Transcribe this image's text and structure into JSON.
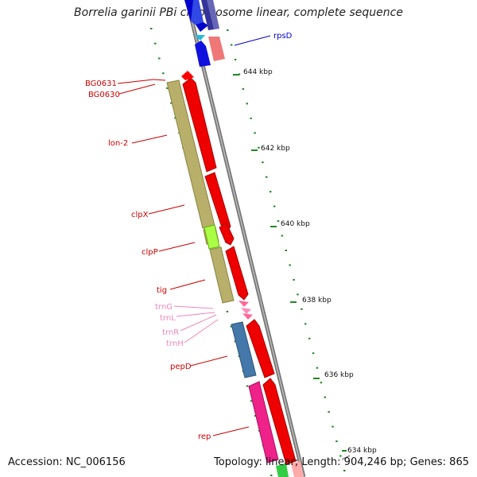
{
  "title": "Borrelia garinii PBi chromosome linear, complete sequence",
  "footer": {
    "accession": "Accession: NC_006156",
    "topology": "Topology: linear; Length: 904,246 bp; Genes: 865"
  },
  "colors": {
    "forward_gene": "#ff0000",
    "reverse_gene": "#b8b06a",
    "rRNA": "#ff6699",
    "trna_text": "#ee88bb",
    "cds_blue": "#4477aa",
    "cds_magenta": "#ee2288",
    "tick_green": "#228822",
    "backbone": "#888888"
  },
  "ruler_labels": [
    "644 kbp",
    "642 kbp",
    "640 kbp",
    "638 kbp",
    "636 kbp",
    "634 kbp"
  ],
  "gene_labels": [
    {
      "id": "rpsD",
      "text": "rpsD",
      "color": "#0000cc"
    },
    {
      "id": "bg0631",
      "text": "BG0631",
      "color": "#cc0000"
    },
    {
      "id": "bg0630",
      "text": "BG0630",
      "color": "#cc0000"
    },
    {
      "id": "lon2",
      "text": "lon-2",
      "color": "#cc0000"
    },
    {
      "id": "clpx",
      "text": "clpX",
      "color": "#cc0000"
    },
    {
      "id": "clpp",
      "text": "clpP",
      "color": "#cc0000"
    },
    {
      "id": "tig",
      "text": "tig",
      "color": "#cc0000"
    },
    {
      "id": "trng",
      "text": "trnG",
      "color": "#ee88bb"
    },
    {
      "id": "trnl",
      "text": "trnL",
      "color": "#ee88bb"
    },
    {
      "id": "trnr",
      "text": "trnR",
      "color": "#ee88bb"
    },
    {
      "id": "trnh",
      "text": "trnH",
      "color": "#ee88bb"
    },
    {
      "id": "pepd",
      "text": "pepD",
      "color": "#cc0000"
    },
    {
      "id": "rep",
      "text": "rep",
      "color": "#cc0000"
    }
  ]
}
